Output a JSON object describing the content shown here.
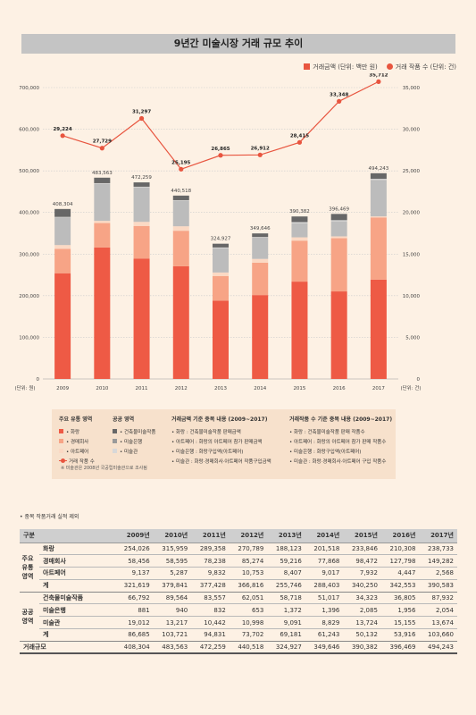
{
  "title": "9년간 미술시장 거래 규모 추이",
  "legend": {
    "bar_label": "거래금액 (단위: 백만 원)",
    "line_label": "거래 작품 수 (단위: 건)"
  },
  "axis": {
    "left_unit": "(단위: 원)",
    "right_unit": "(단위: 건)"
  },
  "chart_data": {
    "type": "bar",
    "categories": [
      "2009",
      "2010",
      "2011",
      "2012",
      "2013",
      "2014",
      "2015",
      "2016",
      "2017"
    ],
    "series": [
      {
        "name": "화랑",
        "values": [
          254026,
          315959,
          289358,
          270789,
          188123,
          201518,
          233846,
          210308,
          238733
        ],
        "color": "#ee5a45"
      },
      {
        "name": "경매회사",
        "values": [
          58456,
          58595,
          78238,
          85274,
          59216,
          77868,
          98472,
          127798,
          149282
        ],
        "color": "#f7a486"
      },
      {
        "name": "아트페어",
        "values": [
          9137,
          5287,
          9832,
          10753,
          8407,
          9017,
          7932,
          4447,
          2568
        ],
        "color": "#fbd9c4"
      },
      {
        "name": "건축물미술작품",
        "values": [
          66792,
          89564,
          83557,
          62051,
          58718,
          51017,
          34323,
          36805,
          87932
        ],
        "color": "#bcbcbc"
      },
      {
        "name": "미술은행",
        "values": [
          881,
          940,
          832,
          653,
          1372,
          1396,
          2085,
          1956,
          2054
        ],
        "color": "#e6e6e6"
      },
      {
        "name": "미술관",
        "values": [
          19012,
          13217,
          10442,
          10998,
          9091,
          8829,
          13724,
          15155,
          13674
        ],
        "color": "#676767"
      }
    ],
    "totals": [
      408304,
      483563,
      472259,
      440518,
      324927,
      349646,
      390382,
      396469,
      494243
    ],
    "totals_labels": [
      "408,304",
      "483,563",
      "472,259",
      "440,518",
      "324,927",
      "349,646",
      "390,382",
      "396,469",
      "494,243"
    ],
    "line": {
      "name": "거래 작품 수",
      "values": [
        29224,
        27729,
        31297,
        25195,
        26865,
        26912,
        28415,
        33348,
        35712
      ],
      "labels": [
        "29,224",
        "27,729",
        "31,297",
        "25,195",
        "26,865",
        "26,912",
        "28,415",
        "33,348",
        "35,712"
      ],
      "color": "#e8553f"
    },
    "ylim_left": [
      0,
      700000
    ],
    "yticks_left": [
      "0",
      "100,000",
      "200,000",
      "300,000",
      "400,000",
      "500,000",
      "600,000",
      "700,000"
    ],
    "ylim_right": [
      0,
      35000
    ],
    "yticks_right": [
      "0",
      "5,000",
      "10,000",
      "15,000",
      "20,000",
      "25,000",
      "30,000",
      "35,000"
    ],
    "grid": true
  },
  "notes": {
    "main_head": "주요 유통 영역",
    "main_items": [
      "• 화랑",
      "• 경매회사",
      "• 아트페어"
    ],
    "line_item": "거래 작품 수",
    "public_head": "공공 영역",
    "public_items": [
      "• 건축물미술작품",
      "• 미술은행",
      "• 미술관"
    ],
    "footnote": "※ 미술관은 2008년 국공립미술관으로 조사됨",
    "amount_head": "거래금액 기준 중복 내용 (2009~2017)",
    "amount_items": [
      "• 화랑 : 건축물미술작품 판매금액",
      "• 아트페어 : 화랑의 아트페어 참가 판매금액",
      "• 미술은행 : 화랑구입액(아트페어)",
      "• 미술관 : 화랑·경매회사·아트페어 작품구입금액"
    ],
    "count_head": "거래작품 수 기준 중복 내용 (2009~2017)",
    "count_items": [
      "• 화랑 : 건축물미술작품 판매 작품수",
      "• 아트페어 : 화랑의 아트페어 참가 판매 작품수",
      "• 미술은행 : 화랑구입액(아트페어)",
      "• 미술관 : 화랑·경매회사·아트페어 구입 작품수"
    ]
  },
  "table_note": "• 중복 작품거래 실적 제외",
  "table": {
    "header": [
      "구분",
      "2009년",
      "2010년",
      "2011년",
      "2012년",
      "2013년",
      "2014년",
      "2015년",
      "2016년",
      "2017년"
    ],
    "group_main": "주요\n유통\n영역",
    "group_public": "공공\n영역",
    "main_rows": [
      {
        "label": "화랑",
        "values": [
          "254,026",
          "315,959",
          "289,358",
          "270,789",
          "188,123",
          "201,518",
          "233,846",
          "210,308",
          "238,733"
        ]
      },
      {
        "label": "경매회사",
        "values": [
          "58,456",
          "58,595",
          "78,238",
          "85,274",
          "59,216",
          "77,868",
          "98,472",
          "127,798",
          "149,282"
        ]
      },
      {
        "label": "아트페어",
        "values": [
          "9,137",
          "5,287",
          "9,832",
          "10,753",
          "8,407",
          "9,017",
          "7,932",
          "4,447",
          "2,568"
        ]
      },
      {
        "label": "계",
        "values": [
          "321,619",
          "379,841",
          "377,428",
          "366,816",
          "255,746",
          "288,403",
          "340,250",
          "342,553",
          "390,583"
        ]
      }
    ],
    "public_rows": [
      {
        "label": "건축물미술작품",
        "values": [
          "66,792",
          "89,564",
          "83,557",
          "62,051",
          "58,718",
          "51,017",
          "34,323",
          "36,805",
          "87,932"
        ]
      },
      {
        "label": "미술은행",
        "values": [
          "881",
          "940",
          "832",
          "653",
          "1,372",
          "1,396",
          "2,085",
          "1,956",
          "2,054"
        ]
      },
      {
        "label": "미술관",
        "values": [
          "19,012",
          "13,217",
          "10,442",
          "10,998",
          "9,091",
          "8,829",
          "13,724",
          "15,155",
          "13,674"
        ]
      },
      {
        "label": "계",
        "values": [
          "86,685",
          "103,721",
          "94,831",
          "73,702",
          "69,181",
          "61,243",
          "50,132",
          "53,916",
          "103,660"
        ]
      }
    ],
    "total_row": {
      "label": "거래규모",
      "values": [
        "408,304",
        "483,563",
        "472,259",
        "440,518",
        "324,927",
        "349,646",
        "390,382",
        "396,469",
        "494,243"
      ]
    }
  }
}
